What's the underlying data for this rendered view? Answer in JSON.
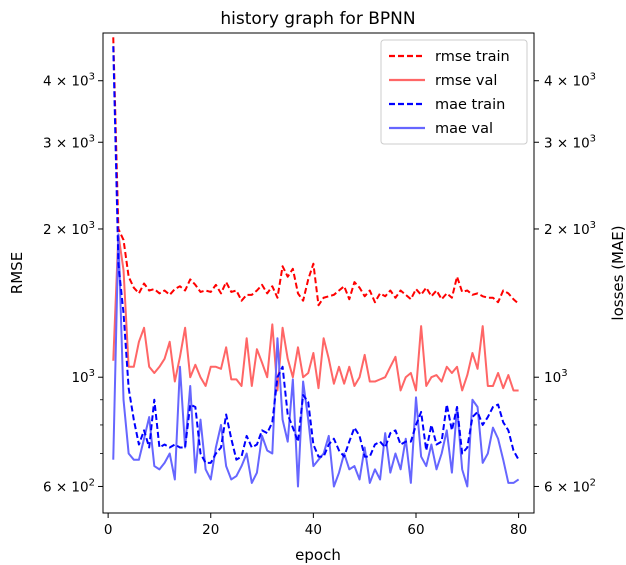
{
  "chart_data": {
    "type": "line",
    "title": "history graph for BPNN",
    "xlabel": "epoch",
    "ylabel_left": "RMSE",
    "ylabel_right": "losses (MAE)",
    "xlim": [
      -1,
      83
    ],
    "ylim": [
      530,
      5000
    ],
    "yscale": "log",
    "xticks": [
      0,
      20,
      40,
      60,
      80
    ],
    "yticks_left": [
      {
        "value": 600,
        "mantissa": "6",
        "exp": "2"
      },
      {
        "value": 1000,
        "mantissa": "",
        "exp": "3"
      },
      {
        "value": 2000,
        "mantissa": "2",
        "exp": "3"
      },
      {
        "value": 3000,
        "mantissa": "3",
        "exp": "3"
      },
      {
        "value": 4000,
        "mantissa": "4",
        "exp": "3"
      }
    ],
    "yticks_right": [
      {
        "value": 600,
        "mantissa": "6",
        "exp": "2"
      },
      {
        "value": 1000,
        "mantissa": "",
        "exp": "3"
      },
      {
        "value": 2000,
        "mantissa": "2",
        "exp": "3"
      },
      {
        "value": 3000,
        "mantissa": "3",
        "exp": "3"
      },
      {
        "value": 4000,
        "mantissa": "4",
        "exp": "3"
      }
    ],
    "minor_ticks": [
      700,
      800,
      900
    ],
    "legend_position": "top-right",
    "x": [
      1,
      2,
      3,
      4,
      5,
      6,
      7,
      8,
      9,
      10,
      11,
      12,
      13,
      14,
      15,
      16,
      17,
      18,
      19,
      20,
      21,
      22,
      23,
      24,
      25,
      26,
      27,
      28,
      29,
      30,
      31,
      32,
      33,
      34,
      35,
      36,
      37,
      38,
      39,
      40,
      41,
      42,
      43,
      44,
      45,
      46,
      47,
      48,
      49,
      50,
      51,
      52,
      53,
      54,
      55,
      56,
      57,
      58,
      59,
      60,
      61,
      62,
      63,
      64,
      65,
      66,
      67,
      68,
      69,
      70,
      71,
      72,
      73,
      74,
      75,
      76,
      77,
      78,
      79,
      80
    ],
    "series": [
      {
        "name": "rmse train",
        "color": "#ff0000",
        "dash": true,
        "values": [
          4900,
          2000,
          1900,
          1600,
          1520,
          1480,
          1550,
          1500,
          1510,
          1480,
          1500,
          1470,
          1510,
          1530,
          1500,
          1580,
          1540,
          1490,
          1500,
          1490,
          1540,
          1480,
          1560,
          1490,
          1500,
          1430,
          1470,
          1470,
          1500,
          1540,
          1480,
          1530,
          1450,
          1680,
          1600,
          1660,
          1480,
          1430,
          1580,
          1700,
          1400,
          1450,
          1460,
          1470,
          1500,
          1530,
          1440,
          1560,
          1520,
          1460,
          1500,
          1420,
          1480,
          1460,
          1500,
          1450,
          1500,
          1470,
          1440,
          1510,
          1470,
          1520,
          1460,
          1500,
          1440,
          1480,
          1450,
          1600,
          1490,
          1500,
          1470,
          1480,
          1460,
          1450,
          1450,
          1420,
          1500,
          1480,
          1440,
          1410
        ]
      },
      {
        "name": "rmse val",
        "color": "#ff6666",
        "dash": false,
        "values": [
          1080,
          1950,
          1650,
          1050,
          1050,
          1180,
          1260,
          1050,
          1020,
          1050,
          1090,
          1180,
          980,
          1100,
          1260,
          1000,
          1060,
          1000,
          960,
          1050,
          1050,
          1040,
          1150,
          990,
          990,
          960,
          1200,
          960,
          1140,
          1070,
          1000,
          1280,
          940,
          1260,
          1090,
          1000,
          1150,
          1000,
          1020,
          1120,
          950,
          1200,
          1090,
          970,
          1050,
          970,
          1050,
          960,
          1000,
          1110,
          980,
          980,
          990,
          1000,
          1050,
          1100,
          940,
          1000,
          1020,
          940,
          1270,
          960,
          1000,
          1010,
          980,
          1050,
          1020,
          1050,
          940,
          1010,
          1120,
          1040,
          1270,
          960,
          960,
          1020,
          950,
          1010,
          940,
          940
        ]
      },
      {
        "name": "mae train",
        "color": "#0000ff",
        "dash": true,
        "values": [
          4700,
          1700,
          1350,
          950,
          820,
          730,
          780,
          720,
          900,
          720,
          730,
          720,
          730,
          720,
          720,
          880,
          870,
          700,
          670,
          670,
          700,
          720,
          840,
          750,
          680,
          690,
          760,
          720,
          730,
          780,
          770,
          810,
          1000,
          1050,
          840,
          790,
          740,
          920,
          890,
          730,
          690,
          690,
          730,
          750,
          710,
          690,
          740,
          790,
          760,
          690,
          690,
          730,
          740,
          720,
          770,
          780,
          730,
          740,
          740,
          800,
          850,
          710,
          800,
          730,
          740,
          880,
          780,
          870,
          700,
          720,
          830,
          850,
          800,
          830,
          870,
          880,
          810,
          780,
          710,
          680
        ]
      },
      {
        "name": "mae val",
        "color": "#6666ff",
        "dash": false,
        "values": [
          680,
          1950,
          900,
          700,
          680,
          680,
          750,
          830,
          660,
          650,
          670,
          700,
          620,
          1050,
          720,
          960,
          640,
          820,
          650,
          620,
          720,
          800,
          660,
          620,
          630,
          660,
          700,
          610,
          640,
          760,
          710,
          700,
          1200,
          820,
          740,
          990,
          600,
          980,
          820,
          660,
          680,
          700,
          760,
          600,
          640,
          700,
          650,
          660,
          620,
          720,
          610,
          650,
          620,
          770,
          640,
          700,
          650,
          750,
          610,
          910,
          690,
          660,
          730,
          650,
          700,
          780,
          640,
          870,
          650,
          600,
          900,
          870,
          670,
          700,
          790,
          750,
          680,
          610,
          610,
          620
        ]
      }
    ]
  }
}
